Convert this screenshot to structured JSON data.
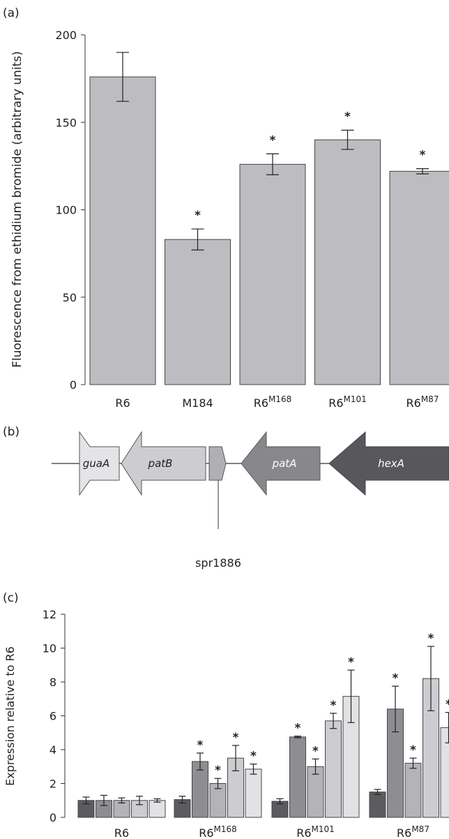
{
  "panel_labels": [
    "(a)",
    "(b)",
    "(c)"
  ],
  "colors": {
    "bar_a": "#bdbdc1",
    "series_c": [
      "#5c5c60",
      "#8e8e92",
      "#b4b4b8",
      "#cdcdd1",
      "#e2e2e5"
    ],
    "genes": {
      "guaA": "#e4e4e6",
      "patB": "#cdcdd0",
      "spr1886": "#b0b0b4",
      "patA": "#88888c",
      "hexA": "#58585c"
    }
  },
  "chart_data": [
    {
      "type": "bar",
      "ylabel": "Fluorescence from ethidium bromide (arbitrary units)",
      "xlabel": "",
      "ylim": [
        0,
        200
      ],
      "yticks": [
        0,
        50,
        100,
        150,
        200
      ],
      "categories": [
        {
          "base": "R6",
          "sup": ""
        },
        {
          "base": "M184",
          "sup": ""
        },
        {
          "base": "R6",
          "sup": "M168"
        },
        {
          "base": "R6",
          "sup": "M101"
        },
        {
          "base": "R6",
          "sup": "M87"
        }
      ],
      "values": [
        176,
        83,
        126,
        140,
        122
      ],
      "errors": [
        14,
        6,
        6,
        5.5,
        1.5
      ],
      "significant": [
        false,
        true,
        true,
        true,
        true
      ],
      "significance_marker": "*"
    },
    {
      "type": "table",
      "genes": [
        {
          "label": "guaA",
          "direction": "left"
        },
        {
          "label": "patB",
          "direction": "left"
        },
        {
          "label": "",
          "direction": "right"
        },
        {
          "label": "patA",
          "direction": "left"
        },
        {
          "label": "hexA",
          "direction": "left"
        }
      ],
      "callout": "spr1886"
    },
    {
      "type": "bar",
      "ylabel": "Expression relative to R6",
      "xlabel": "",
      "ylim": [
        0,
        12
      ],
      "yticks": [
        0,
        2,
        4,
        6,
        8,
        10,
        12
      ],
      "categories": [
        {
          "base": "R6",
          "sup": ""
        },
        {
          "base": "R6",
          "sup": "M168"
        },
        {
          "base": "R6",
          "sup": "M101"
        },
        {
          "base": "R6",
          "sup": "M87"
        }
      ],
      "series": [
        {
          "values": [
            1.0,
            1.05,
            0.95,
            1.5
          ],
          "errors": [
            0.2,
            0.2,
            0.15,
            0.15
          ],
          "significant": [
            false,
            false,
            false,
            false
          ]
        },
        {
          "values": [
            1.0,
            3.3,
            4.75,
            6.4
          ],
          "errors": [
            0.3,
            0.5,
            0.05,
            1.35
          ],
          "significant": [
            false,
            true,
            true,
            true
          ]
        },
        {
          "values": [
            1.0,
            2.0,
            3.0,
            3.2
          ],
          "errors": [
            0.15,
            0.3,
            0.45,
            0.3
          ],
          "significant": [
            false,
            true,
            true,
            true
          ]
        },
        {
          "values": [
            1.0,
            3.5,
            5.7,
            8.2
          ],
          "errors": [
            0.25,
            0.75,
            0.45,
            1.9
          ],
          "significant": [
            false,
            true,
            true,
            true
          ]
        },
        {
          "values": [
            1.0,
            2.85,
            7.15,
            5.3
          ],
          "errors": [
            0.1,
            0.3,
            1.55,
            0.9
          ],
          "significant": [
            false,
            true,
            true,
            true
          ]
        }
      ],
      "significance_marker": "*"
    }
  ]
}
